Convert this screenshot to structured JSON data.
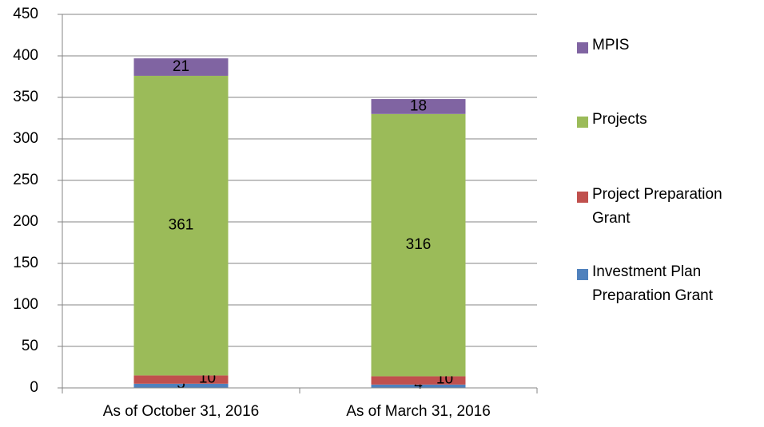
{
  "chart_data": {
    "type": "stacked_bar",
    "categories": [
      "As of October 31, 2016",
      "As of March 31, 2016"
    ],
    "series": [
      {
        "name": "Investment Plan Preparation Grant",
        "color": "#4f81bd",
        "values": [
          5,
          4
        ]
      },
      {
        "name": "Project Preparation Grant",
        "color": "#c0504d",
        "values": [
          10,
          10
        ]
      },
      {
        "name": "Projects",
        "color": "#9bbb59",
        "values": [
          361,
          316
        ]
      },
      {
        "name": "MPIS",
        "color": "#8064a2",
        "values": [
          21,
          18
        ]
      }
    ],
    "ylim": [
      0,
      450
    ],
    "yticks": [
      0,
      50,
      100,
      150,
      200,
      250,
      300,
      350,
      400,
      450
    ],
    "grid": true,
    "legend": "right"
  }
}
